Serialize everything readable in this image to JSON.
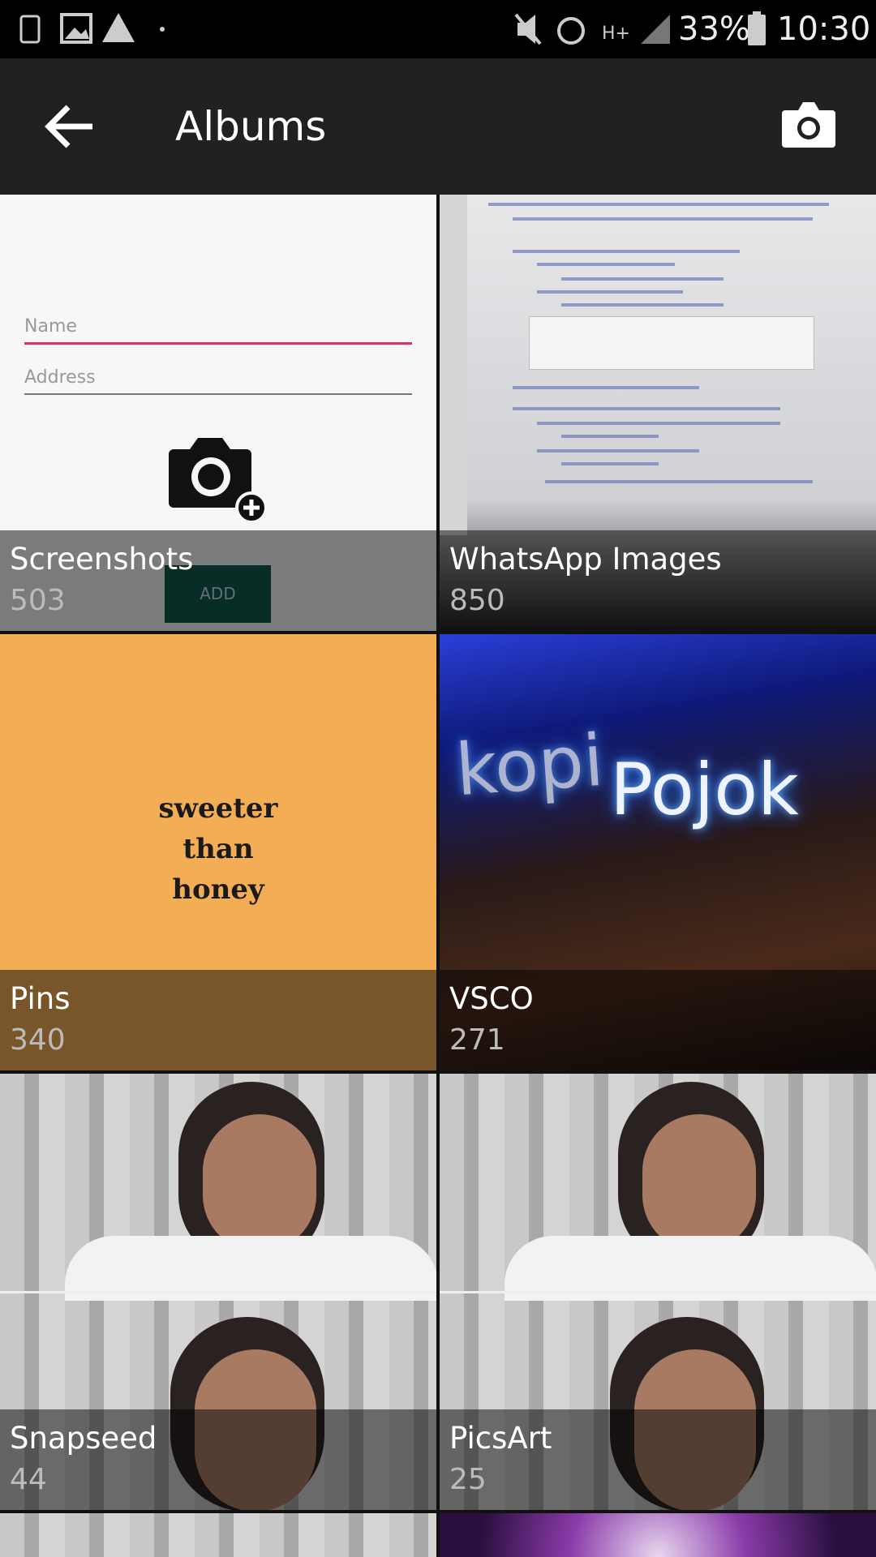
{
  "status_bar": {
    "battery": "33%",
    "time": "10:30"
  },
  "app_bar": {
    "title": "Albums"
  },
  "albums": [
    {
      "name": "Screenshots",
      "count": 503,
      "preview": {
        "fields": [
          "Name",
          "Address"
        ],
        "button": "ADD"
      }
    },
    {
      "name": "WhatsApp Images",
      "count": 850
    },
    {
      "name": "Pins",
      "count": 340,
      "preview": {
        "lines": [
          "sweeter",
          "than",
          "honey"
        ]
      }
    },
    {
      "name": "VSCO",
      "count": 271,
      "preview": {
        "sign": [
          "kopi",
          "Pojok"
        ]
      }
    },
    {
      "name": "Snapseed",
      "count": 44
    },
    {
      "name": "PicsArt",
      "count": 25
    }
  ]
}
